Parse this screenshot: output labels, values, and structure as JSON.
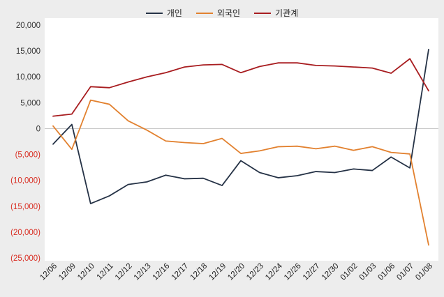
{
  "chart_data": {
    "type": "line",
    "title": "",
    "xlabel": "",
    "ylabel": "",
    "legend_position": "top",
    "grid": false,
    "zero_line": true,
    "ylim": [
      -25000,
      20000
    ],
    "ytick_step": 5000,
    "ytick_labels": [
      "20,000",
      "15,000",
      "10,000",
      "5,000",
      "0",
      "(5,000)",
      "(10,000)",
      "(15,000)",
      "(20,000)",
      "(25,000)"
    ],
    "categories": [
      "12/06",
      "12/09",
      "12/10",
      "12/11",
      "12/12",
      "12/13",
      "12/16",
      "12/17",
      "12/18",
      "12/19",
      "12/20",
      "12/23",
      "12/24",
      "12/26",
      "12/27",
      "12/30",
      "01/02",
      "01/03",
      "01/06",
      "01/07",
      "01/08"
    ],
    "series": [
      {
        "name": "개인",
        "color": "#253246",
        "values": [
          -3000,
          800,
          -14500,
          -13000,
          -10800,
          -10300,
          -9000,
          -9700,
          -9600,
          -11000,
          -6200,
          -8500,
          -9500,
          -9100,
          -8300,
          -8500,
          -7800,
          -8100,
          -5500,
          -7600,
          15300
        ]
      },
      {
        "name": "외국인",
        "color": "#e2812f",
        "values": [
          500,
          -4000,
          5500,
          4700,
          1500,
          -300,
          -2400,
          -2700,
          -2900,
          -1900,
          -4800,
          -4300,
          -3500,
          -3400,
          -3900,
          -3400,
          -4200,
          -3500,
          -4600,
          -4900,
          -22500
        ]
      },
      {
        "name": "기관계",
        "color": "#a81d20",
        "values": [
          2400,
          2800,
          8100,
          7900,
          9000,
          10000,
          10800,
          11900,
          12300,
          12400,
          10800,
          12000,
          12700,
          12700,
          12200,
          12100,
          11900,
          11700,
          10700,
          13500,
          7300
        ]
      }
    ],
    "positive_label_color": "#333333",
    "negative_label_color": "#d93025",
    "xlabel_color": "#222222"
  },
  "colors": {
    "page_background": "#ededed",
    "plot_background": "#ffffff",
    "zero_line": "#c8c8c8"
  }
}
